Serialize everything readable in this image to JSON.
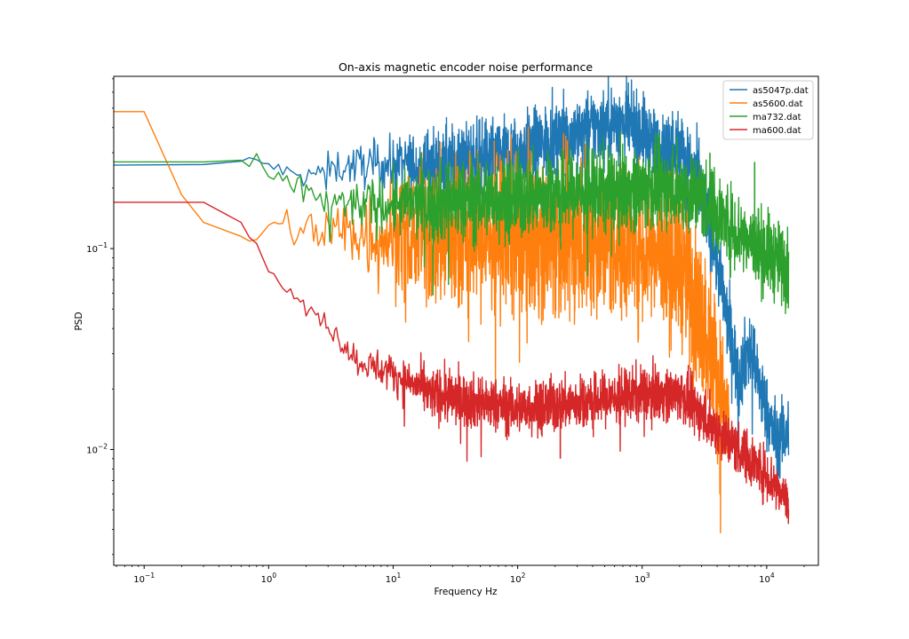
{
  "chart_data": {
    "type": "line",
    "title": "On-axis magnetic encoder noise performance",
    "xlabel": "Frequency Hz",
    "ylabel": "PSD",
    "xscale": "log",
    "yscale": "log",
    "xlim": [
      0.057,
      26000
    ],
    "ylim": [
      0.00265,
      0.72
    ],
    "grid": false,
    "legend_position": "top-right",
    "x_ticks": [
      {
        "value": 0.1,
        "base": "10",
        "exp": "−1"
      },
      {
        "value": 1,
        "base": "10",
        "exp": "0"
      },
      {
        "value": 10,
        "base": "10",
        "exp": "1"
      },
      {
        "value": 100,
        "base": "10",
        "exp": "2"
      },
      {
        "value": 1000,
        "base": "10",
        "exp": "3"
      },
      {
        "value": 10000,
        "base": "10",
        "exp": "4"
      }
    ],
    "y_ticks": [
      {
        "value": 0.01,
        "base": "10",
        "exp": "−2"
      },
      {
        "value": 0.1,
        "base": "10",
        "exp": "−1"
      }
    ],
    "series": [
      {
        "name": "as5047p.dat",
        "color": "#1f77b4",
        "noise": 0.18,
        "points": [
          [
            0.05,
            0.26
          ],
          [
            0.3,
            0.262
          ],
          [
            0.6,
            0.272
          ],
          [
            1,
            0.262
          ],
          [
            1.5,
            0.235
          ],
          [
            2,
            0.225
          ],
          [
            3,
            0.25
          ],
          [
            5,
            0.26
          ],
          [
            10,
            0.26
          ],
          [
            30,
            0.27
          ],
          [
            100,
            0.3
          ],
          [
            300,
            0.38
          ],
          [
            600,
            0.43
          ],
          [
            1000,
            0.38
          ],
          [
            1400,
            0.3
          ],
          [
            1800,
            0.33
          ],
          [
            2200,
            0.3
          ],
          [
            3000,
            0.2
          ],
          [
            3600,
            0.12
          ],
          [
            5000,
            0.04
          ],
          [
            6000,
            0.022
          ],
          [
            7000,
            0.032
          ],
          [
            8000,
            0.026
          ],
          [
            10000,
            0.015
          ],
          [
            12000,
            0.011
          ],
          [
            15000,
            0.0125
          ]
        ]
      },
      {
        "name": "as5600.dat",
        "color": "#ff7f0e",
        "noise": 0.38,
        "points": [
          [
            0.05,
            0.48
          ],
          [
            0.1,
            0.48
          ],
          [
            0.2,
            0.185
          ],
          [
            0.3,
            0.135
          ],
          [
            0.6,
            0.115
          ],
          [
            0.7,
            0.105
          ],
          [
            1,
            0.13
          ],
          [
            2,
            0.125
          ],
          [
            5,
            0.12
          ],
          [
            10,
            0.115
          ],
          [
            30,
            0.115
          ],
          [
            100,
            0.115
          ],
          [
            300,
            0.11
          ],
          [
            1000,
            0.105
          ],
          [
            2000,
            0.085
          ],
          [
            3000,
            0.045
          ],
          [
            4000,
            0.025
          ],
          [
            5000,
            0.012
          ]
        ]
      },
      {
        "name": "ma732.dat",
        "color": "#2ca02c",
        "noise": 0.2,
        "points": [
          [
            0.05,
            0.27
          ],
          [
            0.3,
            0.27
          ],
          [
            0.6,
            0.275
          ],
          [
            1,
            0.23
          ],
          [
            2,
            0.19
          ],
          [
            3,
            0.17
          ],
          [
            5,
            0.165
          ],
          [
            10,
            0.165
          ],
          [
            30,
            0.17
          ],
          [
            100,
            0.18
          ],
          [
            300,
            0.19
          ],
          [
            1000,
            0.2
          ],
          [
            2000,
            0.2
          ],
          [
            3000,
            0.18
          ],
          [
            5000,
            0.13
          ],
          [
            10000,
            0.095
          ],
          [
            15000,
            0.08
          ]
        ]
      },
      {
        "name": "ma600.dat",
        "color": "#d62728",
        "noise": 0.13,
        "points": [
          [
            0.05,
            0.17
          ],
          [
            0.3,
            0.17
          ],
          [
            0.6,
            0.135
          ],
          [
            1,
            0.08
          ],
          [
            1.5,
            0.06
          ],
          [
            2,
            0.05
          ],
          [
            3,
            0.042
          ],
          [
            5,
            0.028
          ],
          [
            10,
            0.024
          ],
          [
            20,
            0.019
          ],
          [
            50,
            0.017
          ],
          [
            100,
            0.016
          ],
          [
            300,
            0.017
          ],
          [
            1000,
            0.019
          ],
          [
            2000,
            0.019
          ],
          [
            3000,
            0.015
          ],
          [
            5000,
            0.011
          ],
          [
            10000,
            0.0075
          ],
          [
            15000,
            0.0055
          ]
        ]
      }
    ],
    "spikes": [
      {
        "series": "ma732.dat",
        "x": 8000,
        "y": 0.27
      },
      {
        "series": "ma732.dat",
        "x": 3500,
        "y": 0.3
      },
      {
        "series": "as5047p.dat",
        "x": 8000,
        "y": 0.04
      },
      {
        "series": "as5600.dat",
        "x": 200,
        "y": 0.045
      },
      {
        "series": "ma600.dat",
        "x": 220,
        "y": 0.009
      }
    ]
  }
}
